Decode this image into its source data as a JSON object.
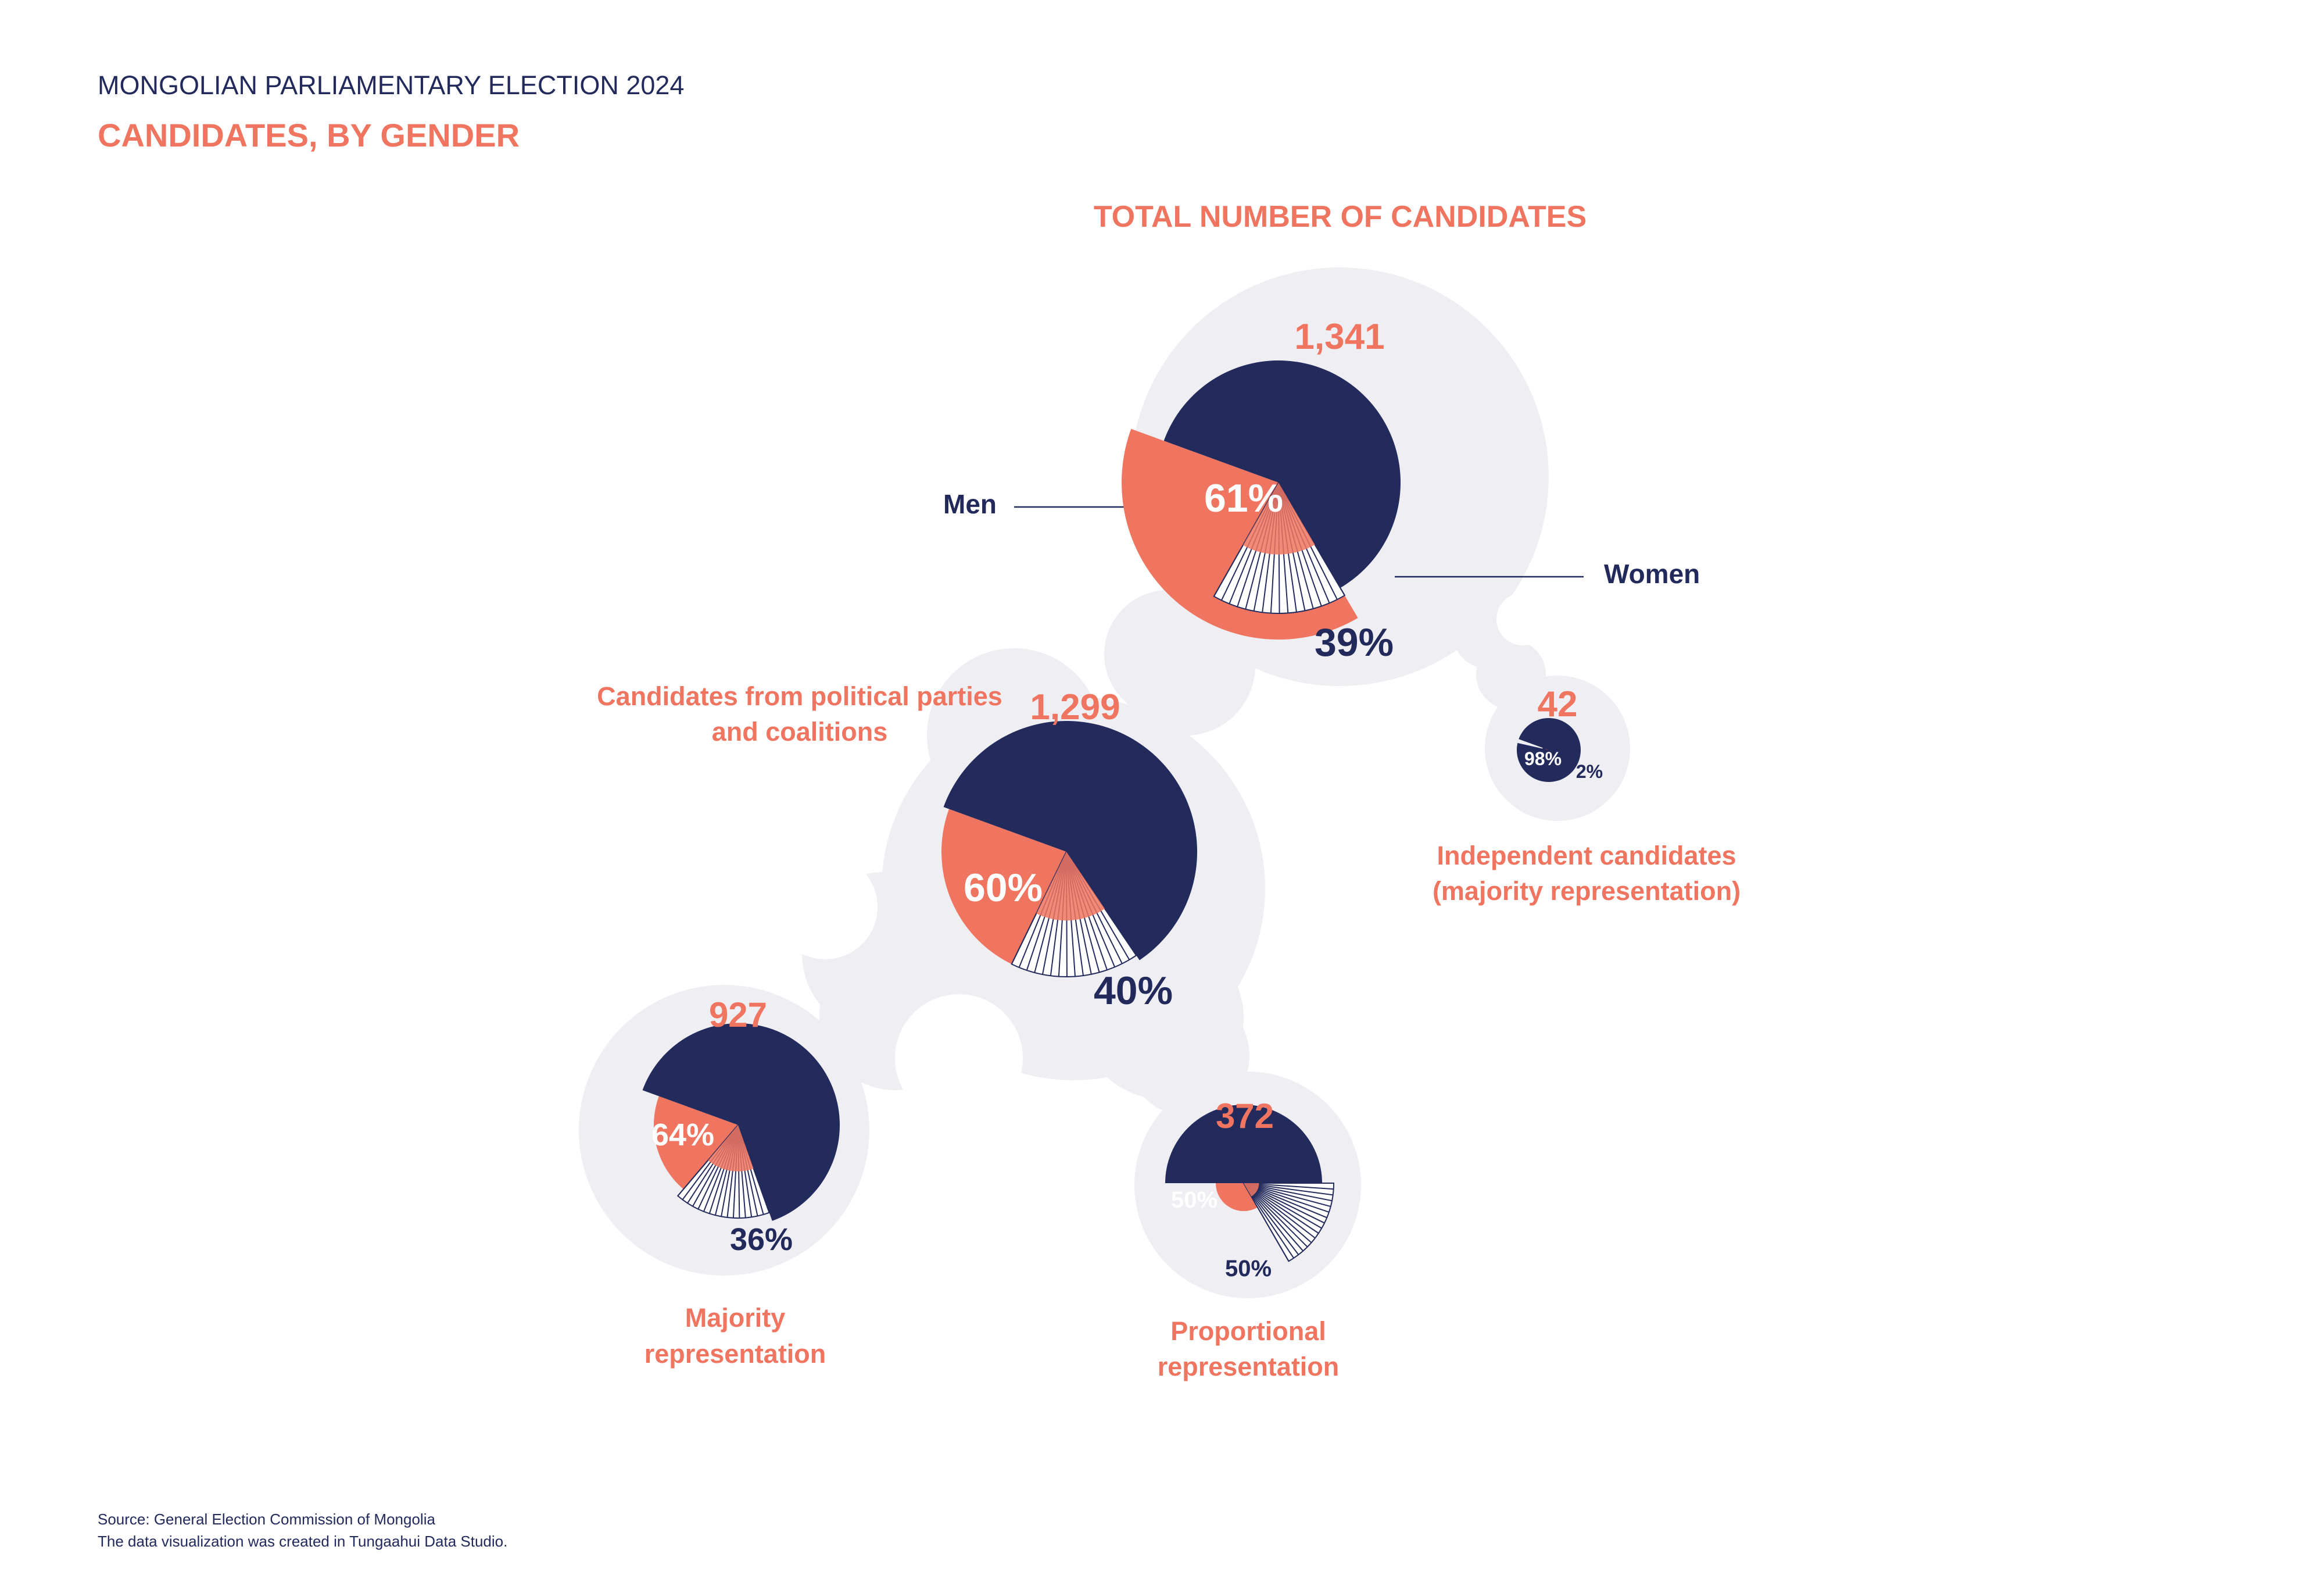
{
  "header": {
    "supertitle": "MONGOLIAN PARLIAMENTARY ELECTION 2024",
    "title": "CANDIDATES, BY GENDER"
  },
  "section_title": "TOTAL NUMBER OF CANDIDATES",
  "legend": {
    "men": "Men",
    "women": "Women"
  },
  "source": {
    "line1": "Source: General Election Commission of Mongolia",
    "line2": "The data visualization was created in Tungaahui Data Studio."
  },
  "colors": {
    "men": "#232a5c",
    "women": "#f07560",
    "bubble": "#efeff3",
    "text_dark": "#222a5c",
    "accent": "#f07560"
  },
  "chart_data": {
    "type": "pie",
    "series_names": [
      "Men",
      "Women"
    ],
    "groups": [
      {
        "id": "total",
        "label": "",
        "total": 1341,
        "total_label": "1,341",
        "men_pct": 61,
        "women_pct": 39,
        "men_label": "61%",
        "women_label": "39%"
      },
      {
        "id": "parties",
        "label": "Candidates from political parties and coalitions",
        "total": 1299,
        "total_label": "1,299",
        "men_pct": 60,
        "women_pct": 40,
        "men_label": "60%",
        "women_label": "40%"
      },
      {
        "id": "independent",
        "label": "Independent candidates (majority representation)",
        "total": 42,
        "total_label": "42",
        "men_pct": 98,
        "women_pct": 2,
        "men_label": "98%",
        "women_label": "2%"
      },
      {
        "id": "majority",
        "label": "Majority representation",
        "total": 927,
        "total_label": "927",
        "men_pct": 64,
        "women_pct": 36,
        "men_label": "64%",
        "women_label": "36%"
      },
      {
        "id": "proportional",
        "label": "Proportional representation",
        "total": 372,
        "total_label": "372",
        "men_pct": 50,
        "women_pct": 50,
        "men_label": "50%",
        "women_label": "50%"
      }
    ]
  }
}
